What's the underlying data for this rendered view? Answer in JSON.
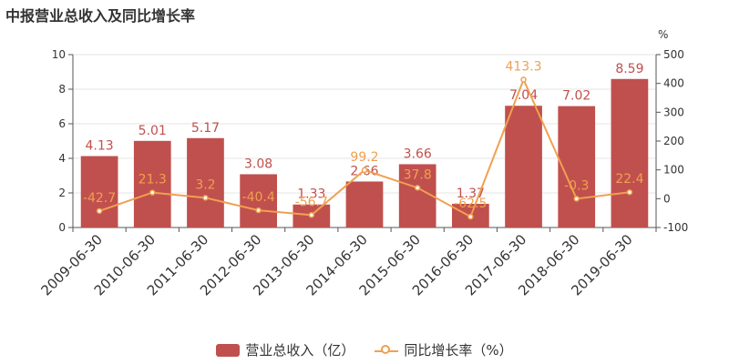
{
  "chart_data": {
    "type": "bar",
    "title": "中报营业总收入及同比增长率",
    "categories": [
      "2009-06-30",
      "2010-06-30",
      "2011-06-30",
      "2012-06-30",
      "2013-06-30",
      "2014-06-30",
      "2015-06-30",
      "2016-06-30",
      "2017-06-30",
      "2018-06-30",
      "2019-06-30"
    ],
    "series": [
      {
        "name": "营业总收入（亿）",
        "type": "bar",
        "axis": "left",
        "color": "#c0504d",
        "values": [
          4.13,
          5.01,
          5.17,
          3.08,
          1.33,
          2.66,
          3.66,
          1.37,
          7.04,
          7.02,
          8.59
        ],
        "labels": [
          "4.13",
          "5.01",
          "5.17",
          "3.08",
          "1.33",
          "2.66",
          "3.66",
          "1.37",
          "7.04",
          "7.02",
          "8.59"
        ]
      },
      {
        "name": "同比增长率（%）",
        "type": "line",
        "axis": "right",
        "color": "#f0a050",
        "values": [
          -42.7,
          21.3,
          3.2,
          -40.4,
          -56.7,
          99.2,
          37.8,
          -62.5,
          413.3,
          -0.3,
          22.4
        ],
        "labels": [
          "-42.7",
          "21.3",
          "3.2",
          "-40.4",
          "-56.7",
          "99.2",
          "37.8",
          "-62.5",
          "413.3",
          "-0.3",
          "22.4"
        ]
      }
    ],
    "y_left": {
      "min": 0,
      "max": 10,
      "ticks": [
        "0",
        "2",
        "4",
        "6",
        "8",
        "10"
      ]
    },
    "y_right": {
      "min": -100,
      "max": 500,
      "ticks": [
        "-100",
        "0",
        "100",
        "200",
        "300",
        "400",
        "500"
      ],
      "unit": "%"
    },
    "grid": true,
    "legend_position": "bottom"
  },
  "legend": {
    "bar_label": "营业总收入（亿）",
    "line_label": "同比增长率（%）"
  }
}
